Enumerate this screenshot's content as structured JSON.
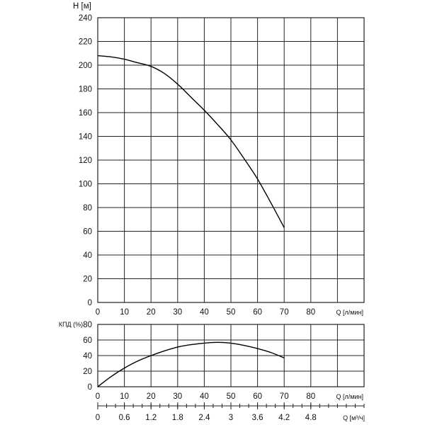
{
  "chart_data": [
    {
      "type": "line",
      "ylabel": "H [м]",
      "xlabel": "Q [л/мин]",
      "xlim": [
        0,
        100
      ],
      "ylim": [
        0,
        240
      ],
      "x_ticks": [
        0,
        10,
        20,
        30,
        40,
        50,
        60,
        70,
        80
      ],
      "y_ticks": [
        0,
        20,
        40,
        60,
        80,
        100,
        120,
        140,
        160,
        180,
        200,
        220,
        240
      ],
      "grid": true,
      "series": [
        {
          "x": [
            0,
            5,
            10,
            15,
            20,
            25,
            30,
            35,
            40,
            45,
            50,
            55,
            60,
            65,
            70
          ],
          "y": [
            208,
            207,
            205,
            202,
            199,
            193,
            184,
            173,
            162,
            150,
            137,
            121,
            104,
            84,
            63
          ]
        }
      ]
    },
    {
      "type": "line",
      "ylabel": "КПД (%)",
      "xlabel": "Q [л/мин]",
      "xlim": [
        0,
        100
      ],
      "ylim": [
        0,
        80
      ],
      "x_ticks": [
        0,
        10,
        20,
        30,
        40,
        50,
        60,
        70,
        80
      ],
      "y_ticks": [
        0,
        20,
        40,
        60,
        80
      ],
      "grid": true,
      "series": [
        {
          "x": [
            0,
            5,
            10,
            15,
            20,
            25,
            30,
            35,
            40,
            45,
            50,
            55,
            60,
            65,
            70
          ],
          "y": [
            0,
            13,
            24,
            33,
            40,
            46,
            51,
            54,
            56,
            57,
            56,
            53,
            49,
            44,
            37
          ]
        }
      ]
    },
    {
      "type": "axis",
      "xlabel": "Q [м³/ч]",
      "ticks": [
        "0",
        "0.6",
        "1.2",
        "1.8",
        "2.4",
        "3",
        "3.6",
        "4.2",
        "4.8"
      ],
      "tick_values": [
        0,
        0.6,
        1.2,
        1.8,
        2.4,
        3,
        3.6,
        4.2,
        4.8
      ],
      "xlim": [
        0,
        6.0
      ]
    }
  ]
}
